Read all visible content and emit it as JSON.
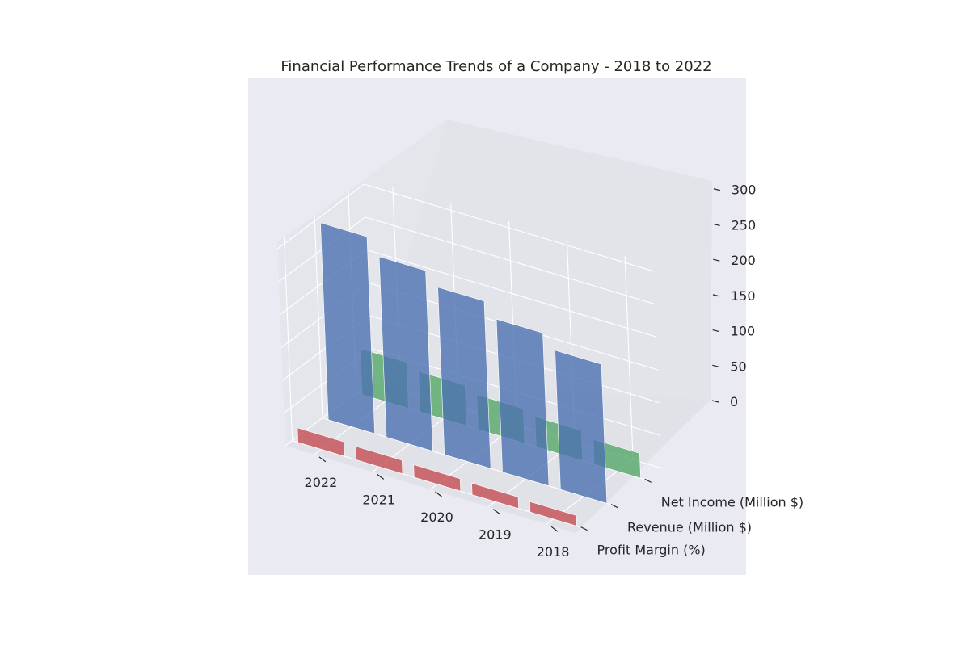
{
  "chart_data": {
    "type": "bar",
    "title": "Financial Performance Trends of a Company - 2018 to 2022",
    "categories": [
      "2022",
      "2021",
      "2020",
      "2019",
      "2018"
    ],
    "series": [
      {
        "name": "Profit Margin (%)",
        "values": [
          22,
          20.5,
          19,
          17.5,
          16
        ],
        "color": "#c44e52"
      },
      {
        "name": "Revenue (Million $)",
        "values": [
          300,
          275,
          255,
          233,
          212
        ],
        "color": "#4c72b0"
      },
      {
        "name": "Net Income (Million $)",
        "values": [
          70,
          62,
          53,
          46,
          38
        ],
        "color": "#55a868"
      }
    ],
    "zlim": [
      0,
      300
    ],
    "z_ticks": [
      0,
      50,
      100,
      150,
      200,
      250,
      300
    ],
    "grid": true,
    "background": "#eaeaf2"
  }
}
